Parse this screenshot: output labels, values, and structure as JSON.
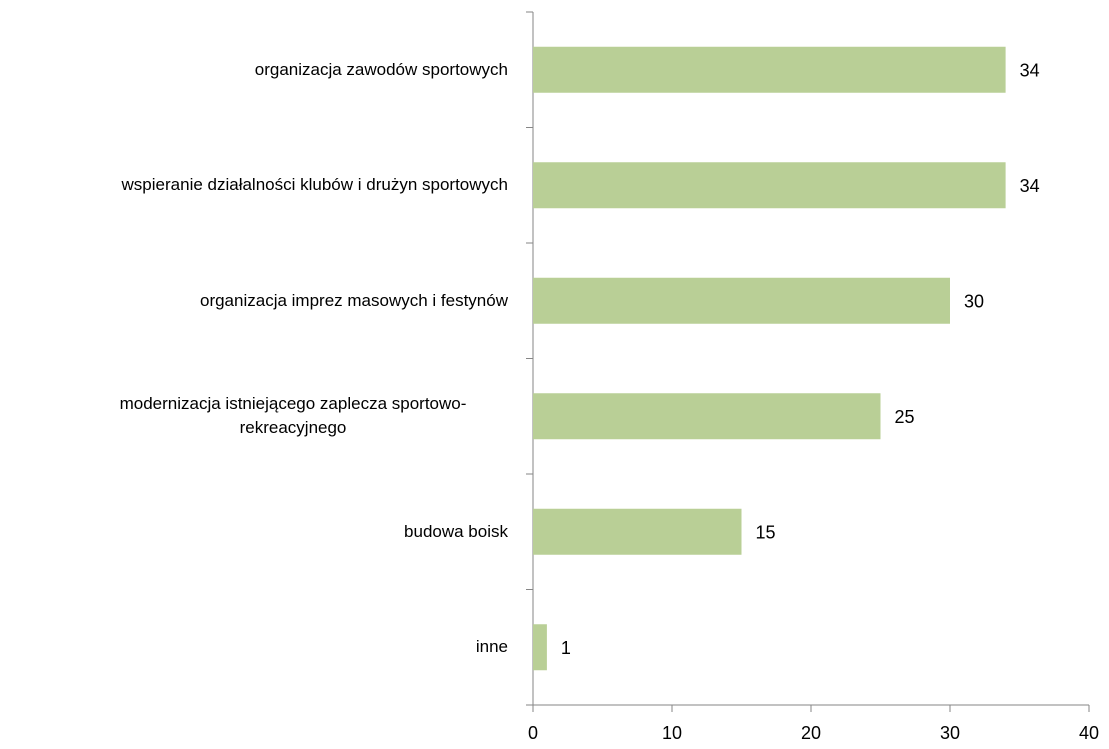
{
  "chart_data": {
    "type": "bar",
    "orientation": "horizontal",
    "categories": [
      "organizacja zawodów sportowych",
      "wspieranie działalności klubów i drużyn sportowych",
      "organizacja imprez masowych i festynów",
      "modernizacja istniejącego zaplecza sportowo-rekreacyjnego",
      "budowa boisk",
      "inne"
    ],
    "values": [
      34,
      34,
      30,
      25,
      15,
      1
    ],
    "color": "#b9cf96",
    "xlim": [
      0,
      40
    ],
    "xticks": [
      0,
      10,
      20,
      30,
      40
    ],
    "grid": false
  }
}
